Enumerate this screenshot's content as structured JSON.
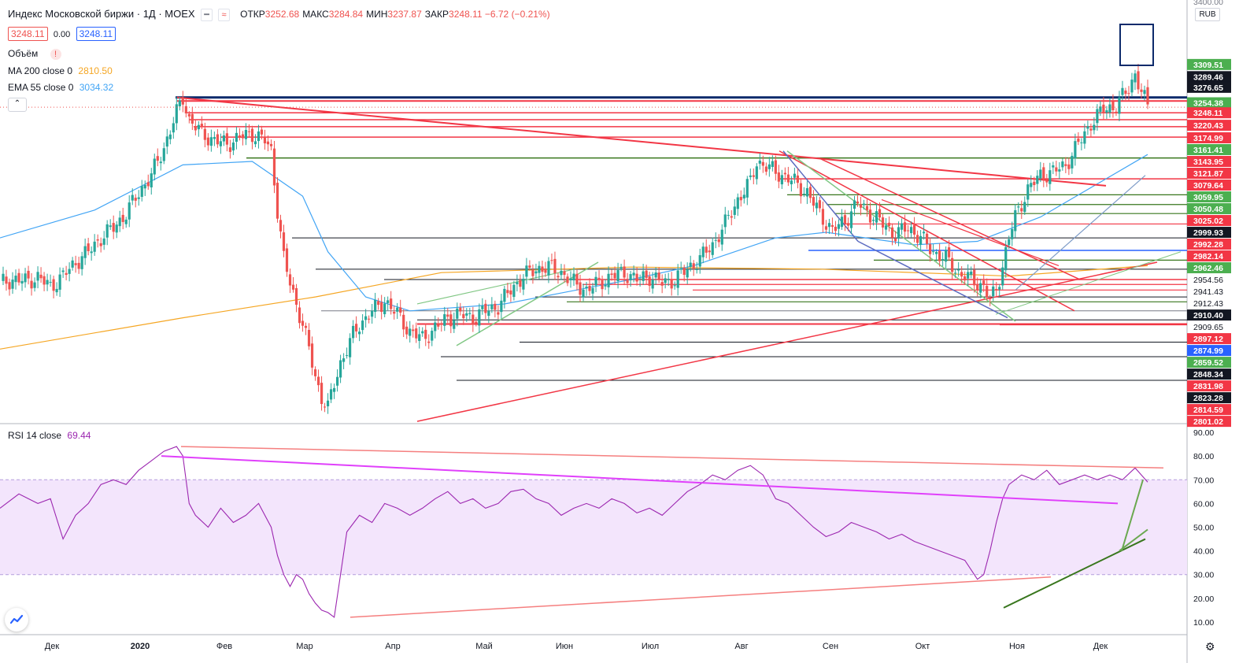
{
  "header": {
    "title": "Индекс Московской биржи · 1Д · MOEX",
    "ohlc": [
      {
        "k": "ОТКР",
        "v": "3252.68"
      },
      {
        "k": "МАКС",
        "v": "3284.84"
      },
      {
        "k": "МИН",
        "v": "3237.87"
      },
      {
        "k": "ЗАКР",
        "v": "3248.11 −6.72 (−0.21%)"
      }
    ],
    "price_bid": "3248.11",
    "spread": "0.00",
    "price_ask": "3248.11",
    "volume_label": "Объём",
    "ma200_label": "MA 200 close 0",
    "ma200_value": "2810.50",
    "ema55_label": "EMA 55 close 0",
    "ema55_value": "3034.32",
    "rsi_label": "RSI 14 close",
    "rsi_value": "69.44",
    "currency": "RUB",
    "collapse_glyph": "⌃"
  },
  "colors": {
    "up": "#26a69a",
    "down": "#ef5350",
    "ma200": "#f5a623",
    "ema55": "#42a5f5",
    "rsi": "#9c27b0",
    "rsi_band": "#f3e5fc",
    "trend_red": "#f23645",
    "trend_green": "#4caf50",
    "dark_green": "#38761d",
    "navy": "#0d2a6b",
    "magenta": "#e040fb"
  },
  "chart_data": [
    {
      "type": "candlestick",
      "title": "Индекс Московской биржи · 1Д · MOEX",
      "ylim": [
        2795,
        3400
      ],
      "x_ticks": [
        "Дек",
        "2020",
        "Фев",
        "Мар",
        "Апр",
        "Май",
        "Июн",
        "Июл",
        "Авг",
        "Сен",
        "Окт",
        "Ноя",
        "Дек"
      ],
      "close_path": [
        [
          0,
          2995
        ],
        [
          4,
          3000
        ],
        [
          8,
          2998
        ],
        [
          12,
          3003
        ],
        [
          16,
          2990
        ],
        [
          20,
          3005
        ],
        [
          24,
          3025
        ],
        [
          28,
          3040
        ],
        [
          32,
          3060
        ],
        [
          36,
          3075
        ],
        [
          40,
          3095
        ],
        [
          44,
          3125
        ],
        [
          48,
          3150
        ],
        [
          52,
          3190
        ],
        [
          56,
          3240
        ],
        [
          58,
          3262
        ],
        [
          60,
          3230
        ],
        [
          64,
          3210
        ],
        [
          68,
          3200
        ],
        [
          72,
          3195
        ],
        [
          76,
          3205
        ],
        [
          80,
          3210
        ],
        [
          84,
          3200
        ],
        [
          86,
          3185
        ],
        [
          88,
          3100
        ],
        [
          90,
          3030
        ],
        [
          92,
          2995
        ],
        [
          94,
          2965
        ],
        [
          96,
          2935
        ],
        [
          98,
          2900
        ],
        [
          100,
          2860
        ],
        [
          102,
          2830
        ],
        [
          104,
          2815
        ],
        [
          106,
          2850
        ],
        [
          108,
          2880
        ],
        [
          110,
          2900
        ],
        [
          112,
          2920
        ],
        [
          114,
          2935
        ],
        [
          116,
          2945
        ],
        [
          118,
          2955
        ],
        [
          120,
          2960
        ],
        [
          122,
          2970
        ],
        [
          126,
          2950
        ],
        [
          130,
          2925
        ],
        [
          134,
          2915
        ],
        [
          138,
          2930
        ],
        [
          142,
          2945
        ],
        [
          146,
          2950
        ],
        [
          150,
          2945
        ],
        [
          154,
          2955
        ],
        [
          158,
          2962
        ],
        [
          162,
          2985
        ],
        [
          166,
          3005
        ],
        [
          170,
          3015
        ],
        [
          174,
          3018
        ],
        [
          178,
          3010
        ],
        [
          182,
          2995
        ],
        [
          186,
          2985
        ],
        [
          190,
          2995
        ],
        [
          194,
          3005
        ],
        [
          198,
          3010
        ],
        [
          202,
          3000
        ],
        [
          206,
          3005
        ],
        [
          210,
          2995
        ],
        [
          214,
          3000
        ],
        [
          218,
          3015
        ],
        [
          222,
          3030
        ],
        [
          226,
          3050
        ],
        [
          230,
          3080
        ],
        [
          234,
          3115
        ],
        [
          238,
          3140
        ],
        [
          240,
          3170
        ],
        [
          244,
          3160
        ],
        [
          248,
          3150
        ],
        [
          252,
          3140
        ],
        [
          256,
          3125
        ],
        [
          260,
          3095
        ],
        [
          264,
          3070
        ],
        [
          268,
          3085
        ],
        [
          272,
          3110
        ],
        [
          276,
          3095
        ],
        [
          280,
          3080
        ],
        [
          284,
          3065
        ],
        [
          288,
          3075
        ],
        [
          292,
          3060
        ],
        [
          296,
          3040
        ],
        [
          300,
          3030
        ],
        [
          304,
          3010
        ],
        [
          308,
          3000
        ],
        [
          312,
          2990
        ],
        [
          314,
          2970
        ],
        [
          316,
          2985
        ],
        [
          318,
          3020
        ],
        [
          320,
          3060
        ],
        [
          322,
          3090
        ],
        [
          326,
          3130
        ],
        [
          330,
          3150
        ],
        [
          334,
          3155
        ],
        [
          338,
          3165
        ],
        [
          342,
          3195
        ],
        [
          346,
          3225
        ],
        [
          350,
          3245
        ],
        [
          354,
          3250
        ],
        [
          358,
          3275
        ],
        [
          360,
          3296
        ],
        [
          362,
          3270
        ],
        [
          364,
          3248
        ]
      ],
      "day_range": [
        0,
        364
      ],
      "ma200_path": [
        [
          0,
          2900
        ],
        [
          58,
          2945
        ],
        [
          100,
          2975
        ],
        [
          140,
          3010
        ],
        [
          200,
          3018
        ],
        [
          260,
          3015
        ],
        [
          320,
          3005
        ],
        [
          364,
          3020
        ]
      ],
      "ema55_path": [
        [
          0,
          3060
        ],
        [
          30,
          3100
        ],
        [
          58,
          3165
        ],
        [
          80,
          3170
        ],
        [
          96,
          3120
        ],
        [
          104,
          3040
        ],
        [
          116,
          2975
        ],
        [
          130,
          2955
        ],
        [
          160,
          2965
        ],
        [
          200,
          3000
        ],
        [
          220,
          3020
        ],
        [
          246,
          3060
        ],
        [
          262,
          3068
        ],
        [
          290,
          3050
        ],
        [
          310,
          3055
        ],
        [
          330,
          3090
        ],
        [
          364,
          3180
        ]
      ],
      "price_labels": [
        "3309.51",
        "3289.46",
        "3276.65",
        "3254.38",
        "3248.11",
        "3220.43",
        "3174.99",
        "3161.41",
        "3143.95",
        "3121.87",
        "3079.64",
        "3059.95",
        "3050.48",
        "3025.02",
        "2999.93",
        "2992.28",
        "2982.14",
        "2962.46",
        "2954.56",
        "2941.43",
        "2912.43",
        "2910.40",
        "2909.65",
        "2897.12",
        "2874.99",
        "2859.52",
        "2848.34",
        "2831.98",
        "2823.28",
        "2814.59",
        "2801.02",
        "3400.00"
      ],
      "price_label_colors": [
        "green",
        "black",
        "black",
        "green",
        "red",
        "red",
        "red",
        "green",
        "red",
        "red",
        "red",
        "green",
        "green",
        "red",
        "black",
        "red",
        "red",
        "green",
        "white",
        "white",
        "white",
        "black",
        "white",
        "red",
        "blue",
        "green",
        "black",
        "red",
        "black",
        "red",
        "red",
        "gray"
      ],
      "price_label_y": [
        3309.51,
        3292,
        3276.65,
        3254.38,
        3240,
        3222,
        3204,
        3187,
        3170,
        3153,
        3136,
        3119,
        3102,
        3085,
        3068,
        3051,
        3034,
        3017,
        3000,
        2983,
        2966,
        2949,
        2932,
        2915,
        2898,
        2881,
        2864,
        2847,
        2830,
        2813,
        2796,
        3400
      ]
    },
    {
      "type": "line",
      "title": "RSI 14 close",
      "ylim": [
        5,
        93
      ],
      "y_ticks": [
        "90.00",
        "80.00",
        "70.00",
        "60.00",
        "50.00",
        "40.00",
        "30.00",
        "20.00",
        "10.00"
      ],
      "band": [
        30,
        70
      ],
      "rsi_path": [
        [
          0,
          58
        ],
        [
          6,
          64
        ],
        [
          12,
          60
        ],
        [
          16,
          62
        ],
        [
          20,
          45
        ],
        [
          24,
          55
        ],
        [
          28,
          60
        ],
        [
          32,
          68
        ],
        [
          36,
          70
        ],
        [
          40,
          68
        ],
        [
          44,
          74
        ],
        [
          48,
          78
        ],
        [
          52,
          82
        ],
        [
          56,
          84
        ],
        [
          58,
          80
        ],
        [
          60,
          60
        ],
        [
          62,
          55
        ],
        [
          66,
          50
        ],
        [
          70,
          58
        ],
        [
          74,
          52
        ],
        [
          78,
          55
        ],
        [
          82,
          60
        ],
        [
          86,
          50
        ],
        [
          88,
          38
        ],
        [
          90,
          30
        ],
        [
          92,
          25
        ],
        [
          94,
          30
        ],
        [
          96,
          28
        ],
        [
          98,
          22
        ],
        [
          100,
          18
        ],
        [
          102,
          15
        ],
        [
          104,
          14
        ],
        [
          106,
          12
        ],
        [
          108,
          30
        ],
        [
          110,
          48
        ],
        [
          114,
          55
        ],
        [
          118,
          52
        ],
        [
          122,
          60
        ],
        [
          126,
          58
        ],
        [
          130,
          55
        ],
        [
          134,
          58
        ],
        [
          138,
          62
        ],
        [
          142,
          65
        ],
        [
          146,
          60
        ],
        [
          150,
          62
        ],
        [
          154,
          58
        ],
        [
          158,
          60
        ],
        [
          162,
          65
        ],
        [
          166,
          66
        ],
        [
          170,
          62
        ],
        [
          174,
          60
        ],
        [
          178,
          55
        ],
        [
          182,
          58
        ],
        [
          186,
          60
        ],
        [
          190,
          58
        ],
        [
          194,
          62
        ],
        [
          198,
          60
        ],
        [
          202,
          56
        ],
        [
          206,
          58
        ],
        [
          210,
          55
        ],
        [
          214,
          60
        ],
        [
          218,
          65
        ],
        [
          222,
          68
        ],
        [
          226,
          72
        ],
        [
          230,
          70
        ],
        [
          234,
          74
        ],
        [
          238,
          76
        ],
        [
          242,
          72
        ],
        [
          246,
          62
        ],
        [
          250,
          60
        ],
        [
          254,
          55
        ],
        [
          258,
          50
        ],
        [
          262,
          46
        ],
        [
          266,
          48
        ],
        [
          270,
          52
        ],
        [
          274,
          50
        ],
        [
          278,
          48
        ],
        [
          282,
          45
        ],
        [
          286,
          47
        ],
        [
          290,
          44
        ],
        [
          294,
          42
        ],
        [
          298,
          40
        ],
        [
          302,
          38
        ],
        [
          306,
          36
        ],
        [
          310,
          28
        ],
        [
          312,
          30
        ],
        [
          314,
          40
        ],
        [
          316,
          52
        ],
        [
          318,
          62
        ],
        [
          320,
          68
        ],
        [
          324,
          72
        ],
        [
          328,
          70
        ],
        [
          332,
          74
        ],
        [
          336,
          68
        ],
        [
          340,
          70
        ],
        [
          344,
          72
        ],
        [
          348,
          70
        ],
        [
          352,
          72
        ],
        [
          356,
          70
        ],
        [
          360,
          75
        ],
        [
          362,
          72
        ],
        [
          364,
          69
        ]
      ]
    }
  ]
}
